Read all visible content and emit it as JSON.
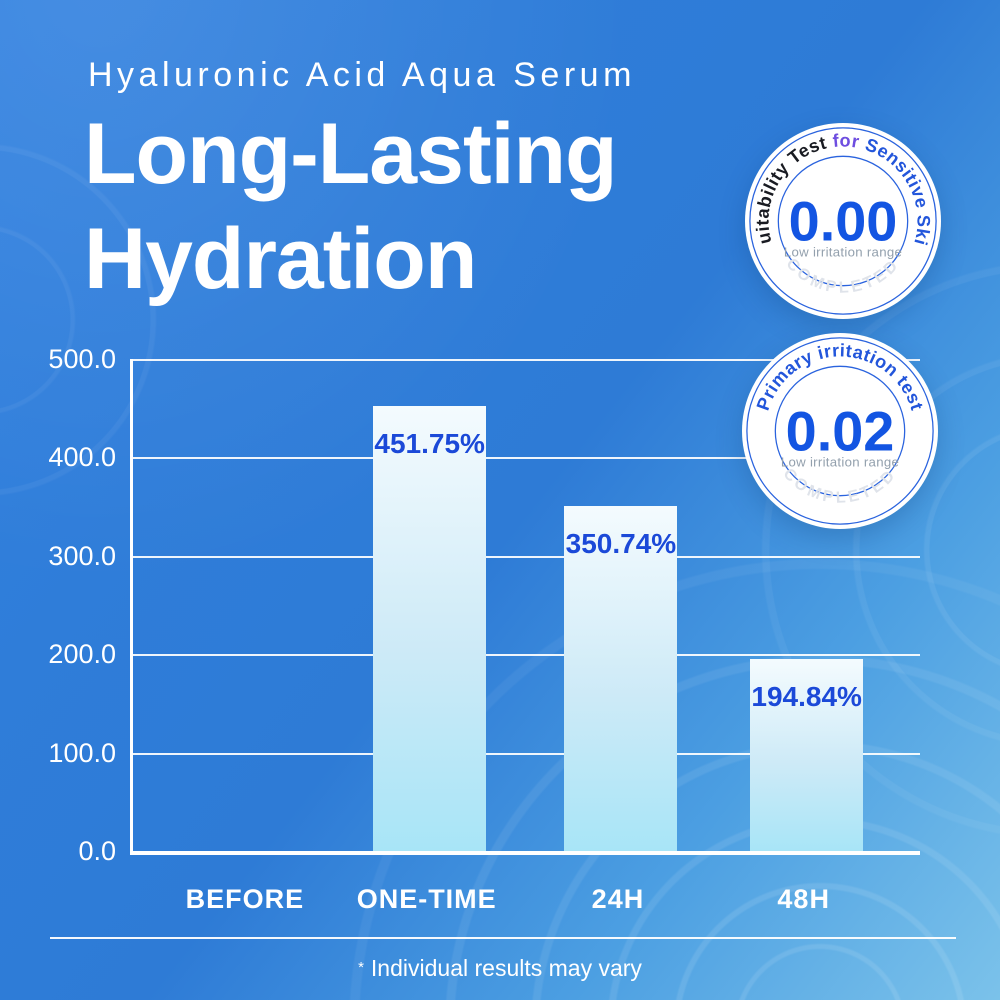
{
  "header": {
    "subtitle": "Hyaluronic Acid Aqua Serum",
    "title_line1": "Long-Lasting",
    "title_line2": "Hydration"
  },
  "badges": [
    {
      "arc": {
        "part1": "Suitability Test ",
        "part2": "for ",
        "part3": "Sensitive Skin"
      },
      "arc_colors": {
        "part1": "#191b22",
        "part2": "#6e4ee0",
        "part3": "#2356db"
      },
      "score": "0.00",
      "caption": "Low irritation range",
      "status": "COMPLETED"
    },
    {
      "arc_text": "Primary irritation test",
      "arc_color": "#2356db",
      "score": "0.02",
      "caption": "Low irritation range",
      "status": "COMPLETED"
    }
  ],
  "chart_data": {
    "type": "bar",
    "title": "Long-Lasting Hydration",
    "categories": [
      "BEFORE",
      "ONE-TIME",
      "24H",
      "48H"
    ],
    "values": [
      0,
      451.75,
      350.74,
      194.84
    ],
    "value_labels": [
      "",
      "451.75%",
      "350.74%",
      "194.84%"
    ],
    "ylim": [
      0,
      500
    ],
    "ytick_labels": [
      "0.0",
      "100.0",
      "200.0",
      "300.0",
      "400.0",
      "500.0"
    ],
    "grid": true,
    "legend": "none",
    "bar_gradient_top": "#f4fbfe",
    "bar_gradient_bottom": "#a8e5f7",
    "value_label_color": "#1b49d8",
    "axis_color": "#ffffff"
  },
  "footer": {
    "asterisk": "*",
    "note": "Individual results may vary"
  },
  "colors": {
    "background_top_left": "#3181E0",
    "background_middle": "#2E7BD6",
    "background_bottom_right": "#7BC2EA",
    "badge_ring": "#2a63de",
    "badge_score_blue": "#1355e2",
    "badge_caption_gray": "#93a0ad",
    "badge_status_gray": "#dfe3ea"
  }
}
